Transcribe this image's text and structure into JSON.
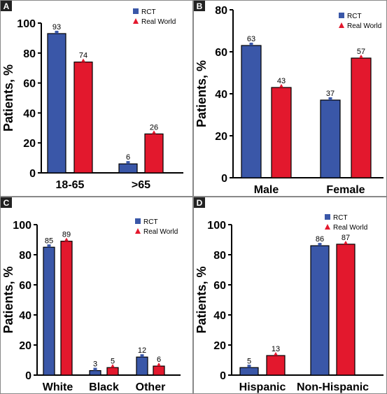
{
  "colors": {
    "rct": "#3a57a8",
    "real_world": "#e3182d",
    "axis": "#000000",
    "panel_border": "#888888",
    "label_bg": "#222222",
    "label_text": "#ffffff"
  },
  "legend": {
    "rct_label": "RCT",
    "real_world_label": "Real World"
  },
  "chart_data": [
    {
      "panel_label": "A",
      "type": "bar",
      "ylabel": "Patients, %",
      "ylim": [
        0,
        100
      ],
      "yticks": [
        "0",
        "20",
        "40",
        "60",
        "80",
        "100"
      ],
      "categories": [
        "18-65",
        ">65"
      ],
      "series": [
        {
          "name": "RCT",
          "values": [
            93,
            6
          ],
          "labels": [
            "93",
            "6"
          ]
        },
        {
          "name": "Real World",
          "values": [
            74,
            26
          ],
          "labels": [
            "74",
            "26"
          ]
        }
      ],
      "legend": "top-right",
      "grid": false
    },
    {
      "panel_label": "B",
      "type": "bar",
      "ylabel": "Patients, %",
      "ylim": [
        0,
        80
      ],
      "yticks": [
        "0",
        "20",
        "40",
        "60",
        "80"
      ],
      "categories": [
        "Male",
        "Female"
      ],
      "series": [
        {
          "name": "RCT",
          "values": [
            63,
            37
          ],
          "labels": [
            "63",
            "37"
          ]
        },
        {
          "name": "Real World",
          "values": [
            43,
            57
          ],
          "labels": [
            "43",
            "57"
          ]
        }
      ],
      "legend": "top-right",
      "grid": false
    },
    {
      "panel_label": "C",
      "type": "bar",
      "ylabel": "Patients, %",
      "ylim": [
        0,
        100
      ],
      "yticks": [
        "0",
        "20",
        "40",
        "60",
        "80",
        "100"
      ],
      "categories": [
        "White",
        "Black",
        "Other"
      ],
      "series": [
        {
          "name": "RCT",
          "values": [
            85,
            3,
            12
          ],
          "labels": [
            "85",
            "3",
            "12"
          ]
        },
        {
          "name": "Real World",
          "values": [
            89,
            5,
            6
          ],
          "labels": [
            "89",
            "5",
            "6"
          ]
        }
      ],
      "legend": "top-right",
      "grid": false
    },
    {
      "panel_label": "D",
      "type": "bar",
      "ylabel": "Patients, %",
      "ylim": [
        0,
        100
      ],
      "yticks": [
        "0",
        "20",
        "40",
        "60",
        "80",
        "100"
      ],
      "categories": [
        "Hispanic",
        "Non-Hispanic"
      ],
      "series": [
        {
          "name": "RCT",
          "values": [
            5,
            86
          ],
          "labels": [
            "5",
            "86"
          ]
        },
        {
          "name": "Real World",
          "values": [
            13,
            87
          ],
          "labels": [
            "13",
            "87"
          ]
        }
      ],
      "legend": "top-right",
      "grid": false
    }
  ]
}
